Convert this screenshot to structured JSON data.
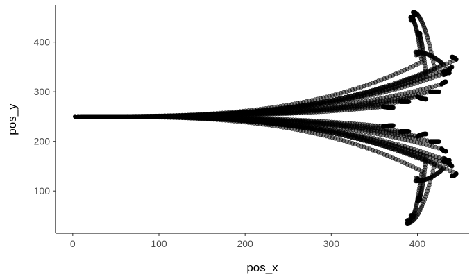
{
  "chart_data": {
    "type": "scatter",
    "title": "",
    "xlabel": "pos_x",
    "ylabel": "pos_y",
    "xlim": [
      -20,
      460
    ],
    "ylim": [
      15,
      475
    ],
    "x_ticks": [
      {
        "value": 0,
        "label": "0"
      },
      {
        "value": 100,
        "label": "100"
      },
      {
        "value": 200,
        "label": "200"
      },
      {
        "value": 300,
        "label": "300"
      },
      {
        "value": 400,
        "label": "400"
      }
    ],
    "y_ticks": [
      {
        "value": 100,
        "label": "100"
      },
      {
        "value": 200,
        "label": "200"
      },
      {
        "value": 300,
        "label": "300"
      },
      {
        "value": 400,
        "label": "400"
      }
    ],
    "grid": false,
    "point_color": "#000000",
    "point_fill_opacity": 0.5,
    "start_point": [
      3,
      250
    ],
    "upper_trajectories": [
      {
        "spread_y": 360,
        "bend": 405,
        "end_x": 392,
        "end_y": 450,
        "tail": 20
      },
      {
        "spread_y": 345,
        "bend": 420,
        "end_x": 395,
        "end_y": 460,
        "tail": 30
      },
      {
        "spread_y": 330,
        "bend": 410,
        "end_x": 400,
        "end_y": 420,
        "tail": 15
      },
      {
        "spread_y": 350,
        "bend": 440,
        "end_x": 430,
        "end_y": 340,
        "tail": 10
      },
      {
        "spread_y": 340,
        "bend": 436,
        "end_x": 437,
        "end_y": 338,
        "tail": 0
      },
      {
        "spread_y": 315,
        "bend": 428,
        "end_x": 433,
        "end_y": 320,
        "tail": 0
      },
      {
        "spread_y": 300,
        "bend": 415,
        "end_x": 425,
        "end_y": 300,
        "tail": 0
      },
      {
        "spread_y": 290,
        "bend": 400,
        "end_x": 410,
        "end_y": 285,
        "tail": 0
      },
      {
        "spread_y": 280,
        "bend": 380,
        "end_x": 390,
        "end_y": 280,
        "tail": 0
      },
      {
        "spread_y": 270,
        "bend": 360,
        "end_x": 372,
        "end_y": 268,
        "tail": 0
      },
      {
        "spread_y": 365,
        "bend": 445,
        "end_x": 440,
        "end_y": 370,
        "tail": 0
      },
      {
        "spread_y": 355,
        "bend": 430,
        "end_x": 398,
        "end_y": 380,
        "tail": 8
      }
    ],
    "lower_trajectories": [
      {
        "spread_y": 140,
        "bend": 405,
        "end_x": 392,
        "end_y": 45,
        "tail": 20
      },
      {
        "spread_y": 155,
        "bend": 420,
        "end_x": 388,
        "end_y": 35,
        "tail": 30
      },
      {
        "spread_y": 170,
        "bend": 410,
        "end_x": 400,
        "end_y": 80,
        "tail": 15
      },
      {
        "spread_y": 150,
        "bend": 440,
        "end_x": 430,
        "end_y": 160,
        "tail": 10
      },
      {
        "spread_y": 160,
        "bend": 436,
        "end_x": 437,
        "end_y": 162,
        "tail": 0
      },
      {
        "spread_y": 185,
        "bend": 428,
        "end_x": 433,
        "end_y": 180,
        "tail": 0
      },
      {
        "spread_y": 200,
        "bend": 415,
        "end_x": 425,
        "end_y": 200,
        "tail": 0
      },
      {
        "spread_y": 210,
        "bend": 400,
        "end_x": 410,
        "end_y": 215,
        "tail": 0
      },
      {
        "spread_y": 220,
        "bend": 380,
        "end_x": 390,
        "end_y": 220,
        "tail": 0
      },
      {
        "spread_y": 230,
        "bend": 360,
        "end_x": 372,
        "end_y": 232,
        "tail": 0
      },
      {
        "spread_y": 135,
        "bend": 445,
        "end_x": 440,
        "end_y": 130,
        "tail": 0
      },
      {
        "spread_y": 145,
        "bend": 430,
        "end_x": 398,
        "end_y": 120,
        "tail": 8
      }
    ]
  }
}
